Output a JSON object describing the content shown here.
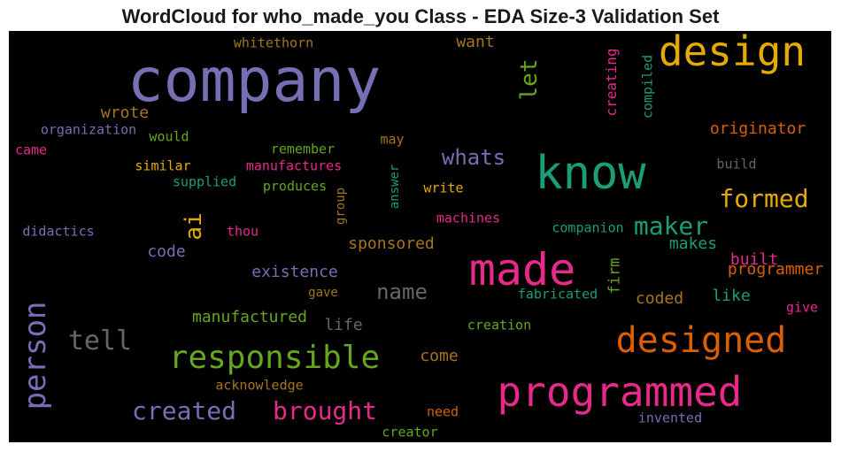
{
  "chart_data": {
    "type": "wordcloud",
    "title": "WordCloud for who_made_you Class - EDA Size-3 Validation Set",
    "background": "#000000",
    "colors": {
      "purple": "#7570b3",
      "orange": "#d95f02",
      "teal": "#1b9e77",
      "pink": "#e7298a",
      "green": "#66a61e",
      "gold": "#e6ab02",
      "brown": "#a6761d",
      "gray": "#666666"
    },
    "words": [
      {
        "text": "company",
        "color": "purple"
      },
      {
        "text": "design",
        "color": "gold"
      },
      {
        "text": "know",
        "color": "teal"
      },
      {
        "text": "made",
        "color": "pink"
      },
      {
        "text": "programmed",
        "color": "pink"
      },
      {
        "text": "designed",
        "color": "orange"
      },
      {
        "text": "responsible",
        "color": "green"
      },
      {
        "text": "person",
        "color": "purple",
        "rotated": true
      },
      {
        "text": "tell",
        "color": "gray"
      },
      {
        "text": "created",
        "color": "purple"
      },
      {
        "text": "brought",
        "color": "pink"
      },
      {
        "text": "formed",
        "color": "gold"
      },
      {
        "text": "maker",
        "color": "teal"
      },
      {
        "text": "ai",
        "color": "gold",
        "rotated": true
      },
      {
        "text": "let",
        "color": "green",
        "rotated": true
      },
      {
        "text": "whats",
        "color": "purple"
      },
      {
        "text": "name",
        "color": "gray"
      },
      {
        "text": "existence",
        "color": "purple"
      },
      {
        "text": "manufactured",
        "color": "green"
      },
      {
        "text": "sponsored",
        "color": "brown"
      },
      {
        "text": "originator",
        "color": "orange"
      },
      {
        "text": "creating",
        "color": "pink",
        "rotated": true
      },
      {
        "text": "compiled",
        "color": "teal",
        "rotated": true
      },
      {
        "text": "whitethorn",
        "color": "brown"
      },
      {
        "text": "want",
        "color": "brown"
      },
      {
        "text": "wrote",
        "color": "brown"
      },
      {
        "text": "organization",
        "color": "purple"
      },
      {
        "text": "would",
        "color": "green"
      },
      {
        "text": "remember",
        "color": "green"
      },
      {
        "text": "may",
        "color": "brown"
      },
      {
        "text": "came",
        "color": "pink"
      },
      {
        "text": "similar",
        "color": "gold"
      },
      {
        "text": "manufactures",
        "color": "pink"
      },
      {
        "text": "supplied",
        "color": "teal"
      },
      {
        "text": "produces",
        "color": "green"
      },
      {
        "text": "group",
        "color": "brown",
        "rotated": true
      },
      {
        "text": "answer",
        "color": "teal",
        "rotated": true
      },
      {
        "text": "write",
        "color": "gold"
      },
      {
        "text": "build",
        "color": "gray"
      },
      {
        "text": "machines",
        "color": "pink"
      },
      {
        "text": "didactics",
        "color": "purple"
      },
      {
        "text": "thou",
        "color": "pink"
      },
      {
        "text": "companion",
        "color": "teal"
      },
      {
        "text": "makes",
        "color": "teal"
      },
      {
        "text": "code",
        "color": "purple"
      },
      {
        "text": "firm",
        "color": "green",
        "rotated": true
      },
      {
        "text": "built",
        "color": "pink"
      },
      {
        "text": "programmer",
        "color": "orange"
      },
      {
        "text": "gave",
        "color": "brown"
      },
      {
        "text": "fabricated",
        "color": "teal"
      },
      {
        "text": "coded",
        "color": "brown"
      },
      {
        "text": "like",
        "color": "teal"
      },
      {
        "text": "give",
        "color": "pink"
      },
      {
        "text": "life",
        "color": "gray"
      },
      {
        "text": "creation",
        "color": "green"
      },
      {
        "text": "come",
        "color": "brown"
      },
      {
        "text": "acknowledge",
        "color": "brown"
      },
      {
        "text": "need",
        "color": "orange"
      },
      {
        "text": "invented",
        "color": "purple"
      },
      {
        "text": "creator",
        "color": "green"
      }
    ]
  }
}
